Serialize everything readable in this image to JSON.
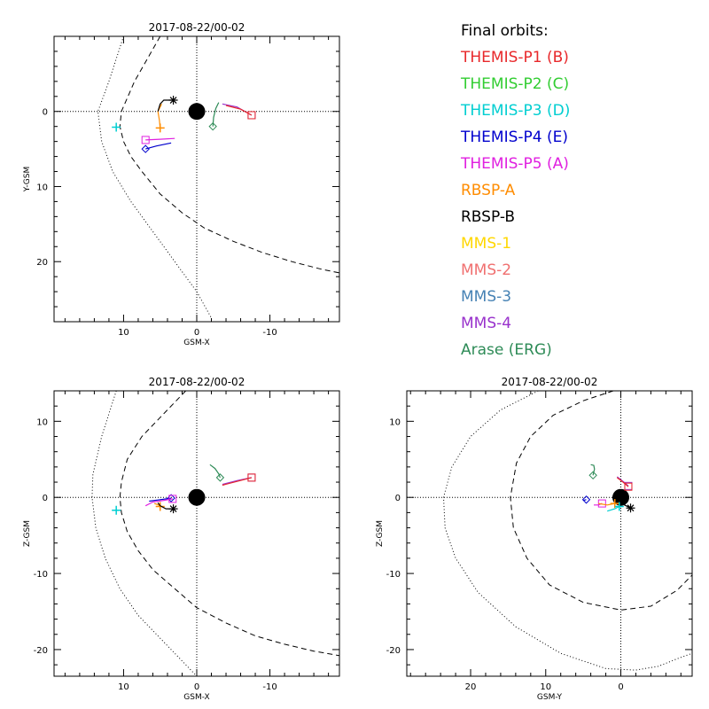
{
  "chart_data": [
    {
      "type": "scatter",
      "id": "xy",
      "title": "2017-08-22/00-02",
      "xlabel": "GSM-X",
      "ylabel": "Y-GSM",
      "xlim": [
        19.5,
        -19.5
      ],
      "ylim": [
        -10,
        28
      ],
      "xticks": [
        {
          "v": 10,
          "label": "10"
        },
        {
          "v": 0,
          "label": "0"
        },
        {
          "v": -10,
          "label": "-10"
        }
      ],
      "yticks": [
        {
          "v": 0,
          "label": "0"
        },
        {
          "v": 10,
          "label": "10"
        },
        {
          "v": 20,
          "label": "20"
        }
      ],
      "boundaries": [
        {
          "name": "dotted-boundary",
          "style": "dotted",
          "points": [
            [
              10,
              -10
            ],
            [
              12,
              -4
            ],
            [
              13.5,
              0
            ],
            [
              13,
              4
            ],
            [
              11.5,
              8
            ],
            [
              9,
              12
            ],
            [
              6,
              16
            ],
            [
              3,
              20
            ],
            [
              0,
              24
            ],
            [
              -2,
              27.5
            ]
          ]
        },
        {
          "name": "dashed-boundary",
          "style": "dashed",
          "points": [
            [
              5,
              -10
            ],
            [
              8.5,
              -4
            ],
            [
              10.3,
              0
            ],
            [
              10.5,
              2
            ],
            [
              10,
              4
            ],
            [
              9,
              6
            ],
            [
              7.5,
              8
            ],
            [
              5,
              11
            ],
            [
              2,
              13.5
            ],
            [
              -1,
              15.5
            ],
            [
              -5,
              17.3
            ],
            [
              -9,
              18.8
            ],
            [
              -13,
              20
            ],
            [
              -17,
              21
            ],
            [
              -19.5,
              21.5
            ]
          ]
        }
      ],
      "traces": [
        {
          "name": "arase-trace",
          "color": "#2E8B57",
          "marker": "diamond",
          "points": [
            [
              -3,
              -1.2
            ],
            [
              -2.6,
              -0.4
            ],
            [
              -2.3,
              0.8
            ],
            [
              -2.2,
              2
            ]
          ]
        },
        {
          "name": "mms-4-trace",
          "color": "#9932CC",
          "marker": "square",
          "points": [
            [
              -3.5,
              -1
            ],
            [
              -5.5,
              -0.6
            ],
            [
              -7.5,
              0.5
            ]
          ]
        },
        {
          "name": "themis-p1-trace",
          "color": "#E8282B",
          "marker": "square",
          "points": [
            [
              -4,
              -0.8
            ],
            [
              -6,
              -0.3
            ],
            [
              -7.5,
              0.5
            ]
          ]
        },
        {
          "name": "rbsp-a-trace",
          "color": "#FF8C00",
          "marker": "plus",
          "points": [
            [
              4.8,
              -1
            ],
            [
              5.3,
              0
            ],
            [
              5.1,
              1.2
            ],
            [
              5,
              2.2
            ]
          ]
        },
        {
          "name": "themis-p5-trace",
          "color": "#E020E0",
          "marker": "square",
          "points": [
            [
              3,
              3.6
            ],
            [
              5,
              3.7
            ],
            [
              7,
              3.8
            ]
          ]
        },
        {
          "name": "themis-p4-trace",
          "color": "#0000CD",
          "marker": "diamond",
          "points": [
            [
              3.5,
              4.2
            ],
            [
              5.5,
              4.6
            ],
            [
              7,
              5
            ]
          ]
        },
        {
          "name": "themis-p3-trace",
          "color": "#00CED1",
          "marker": "plus",
          "points": [
            [
              11,
              2
            ],
            [
              11,
              2.1
            ]
          ]
        },
        {
          "name": "rbsp-b-trace",
          "color": "#000000",
          "marker": "asterisk",
          "points": [
            [
              5.3,
              0
            ],
            [
              5,
              -1
            ],
            [
              4.5,
              -1.5
            ],
            [
              3.2,
              -1.5
            ]
          ]
        }
      ]
    },
    {
      "type": "scatter",
      "id": "xz",
      "title": "2017-08-22/00-02",
      "xlabel": "GSM-X",
      "ylabel": "Z-GSM",
      "xlim": [
        19.5,
        -19.5
      ],
      "ylim": [
        14,
        -23.5
      ],
      "xticks": [
        {
          "v": 10,
          "label": "10"
        },
        {
          "v": 0,
          "label": "0"
        },
        {
          "v": -10,
          "label": "-10"
        }
      ],
      "yticks": [
        {
          "v": 10,
          "label": "10"
        },
        {
          "v": 0,
          "label": "0"
        },
        {
          "v": -10,
          "label": "-10"
        },
        {
          "v": -20,
          "label": "-20"
        }
      ],
      "boundaries": [
        {
          "name": "dotted-boundary",
          "style": "dotted",
          "points": [
            [
              11,
              14
            ],
            [
              13,
              8
            ],
            [
              14.2,
              3
            ],
            [
              14.3,
              0
            ],
            [
              13.8,
              -4
            ],
            [
              12.5,
              -8
            ],
            [
              10.5,
              -12
            ],
            [
              8,
              -15.5
            ],
            [
              5,
              -18.5
            ],
            [
              2,
              -21.5
            ],
            [
              0,
              -23.5
            ]
          ]
        },
        {
          "name": "dashed-boundary",
          "style": "dashed",
          "points": [
            [
              1.5,
              14
            ],
            [
              4.5,
              11
            ],
            [
              7.5,
              8
            ],
            [
              9.5,
              5
            ],
            [
              10.3,
              2
            ],
            [
              10.5,
              0
            ],
            [
              10.3,
              -2
            ],
            [
              9.5,
              -4.5
            ],
            [
              8,
              -7
            ],
            [
              6,
              -9.5
            ],
            [
              3,
              -12
            ],
            [
              0,
              -14.5
            ],
            [
              -4,
              -16.5
            ],
            [
              -8,
              -18.2
            ],
            [
              -12,
              -19.3
            ],
            [
              -16,
              -20.2
            ],
            [
              -19.5,
              -20.8
            ]
          ]
        }
      ],
      "traces": [
        {
          "name": "arase-trace",
          "color": "#2E8B57",
          "marker": "diamond",
          "points": [
            [
              -1.8,
              4.3
            ],
            [
              -2.5,
              3.8
            ],
            [
              -3,
              3.1
            ],
            [
              -3.2,
              2.6
            ]
          ]
        },
        {
          "name": "mms-4-trace",
          "color": "#9932CC",
          "marker": "square",
          "points": [
            [
              -3.5,
              1.7
            ],
            [
              -5.5,
              2.2
            ],
            [
              -7.5,
              2.6
            ]
          ]
        },
        {
          "name": "themis-p1-trace",
          "color": "#E8282B",
          "marker": "square",
          "points": [
            [
              -3.5,
              1.6
            ],
            [
              -5.5,
              2.1
            ],
            [
              -7.5,
              2.6
            ]
          ]
        },
        {
          "name": "themis-p4-trace",
          "color": "#0000CD",
          "marker": "diamond",
          "points": [
            [
              6.5,
              -0.5
            ],
            [
              5,
              -0.3
            ],
            [
              3.5,
              -0.1
            ]
          ]
        },
        {
          "name": "themis-p5-trace",
          "color": "#E020E0",
          "marker": "square",
          "points": [
            [
              7,
              -1.1
            ],
            [
              6,
              -0.6
            ],
            [
              4.5,
              -0.4
            ],
            [
              3.3,
              -0.2
            ]
          ]
        },
        {
          "name": "rbsp-a-trace",
          "color": "#FF8C00",
          "marker": "plus",
          "points": [
            [
              5.8,
              -0.8
            ],
            [
              5.2,
              -1
            ],
            [
              5,
              -1.2
            ]
          ]
        },
        {
          "name": "themis-p3-trace",
          "color": "#00CED1",
          "marker": "plus",
          "points": [
            [
              11,
              -1.8
            ],
            [
              11,
              -1.7
            ]
          ]
        },
        {
          "name": "rbsp-b-trace",
          "color": "#000000",
          "marker": "asterisk",
          "points": [
            [
              5.3,
              -0.7
            ],
            [
              5,
              -1.1
            ],
            [
              4.2,
              -1.5
            ],
            [
              3.2,
              -1.5
            ]
          ]
        }
      ]
    },
    {
      "type": "scatter",
      "id": "yz",
      "title": "2017-08-22/00-02",
      "xlabel": "GSM-Y",
      "ylabel": "Z-GSM",
      "xlim": [
        28.5,
        -9.5
      ],
      "ylim": [
        14,
        -23.5
      ],
      "xticks": [
        {
          "v": 20,
          "label": "20"
        },
        {
          "v": 10,
          "label": "10"
        },
        {
          "v": 0,
          "label": "0"
        }
      ],
      "yticks": [
        {
          "v": 10,
          "label": "10"
        },
        {
          "v": 0,
          "label": "0"
        },
        {
          "v": -10,
          "label": "-10"
        },
        {
          "v": -20,
          "label": "-20"
        }
      ],
      "boundaries": [
        {
          "name": "dotted-boundary",
          "style": "dotted",
          "points": [
            [
              11,
              14
            ],
            [
              16,
              11.5
            ],
            [
              20,
              8
            ],
            [
              22.5,
              4
            ],
            [
              23.6,
              0
            ],
            [
              23.4,
              -4
            ],
            [
              22,
              -8
            ],
            [
              19,
              -12.5
            ],
            [
              14,
              -17
            ],
            [
              8,
              -20.5
            ],
            [
              2,
              -22.5
            ],
            [
              -2,
              -22.7
            ],
            [
              -5,
              -22.2
            ],
            [
              -7.5,
              -21.2
            ],
            [
              -9.5,
              -20.5
            ]
          ]
        },
        {
          "name": "dashed-boundary",
          "style": "dashed",
          "points": [
            [
              1,
              14
            ],
            [
              5,
              12.7
            ],
            [
              9,
              10.8
            ],
            [
              12,
              8
            ],
            [
              13.9,
              4.5
            ],
            [
              14.7,
              0
            ],
            [
              14.3,
              -4
            ],
            [
              12.5,
              -8
            ],
            [
              9.5,
              -11.5
            ],
            [
              5,
              -13.8
            ],
            [
              0,
              -14.8
            ],
            [
              -4,
              -14.3
            ],
            [
              -7.5,
              -12.2
            ],
            [
              -9.5,
              -10.2
            ]
          ]
        }
      ],
      "traces": [
        {
          "name": "arase-trace",
          "color": "#2E8B57",
          "marker": "diamond",
          "points": [
            [
              4,
              4.3
            ],
            [
              3.6,
              4.2
            ],
            [
              3.5,
              3.7
            ],
            [
              3.7,
              2.9
            ]
          ]
        },
        {
          "name": "mms-4-trace",
          "color": "#9932CC",
          "marker": "square",
          "points": [
            [
              0.5,
              2.7
            ],
            [
              -0.3,
              2.1
            ],
            [
              -1,
              1.5
            ]
          ]
        },
        {
          "name": "themis-p1-trace",
          "color": "#E8282B",
          "marker": "square",
          "points": [
            [
              0.5,
              2.6
            ],
            [
              -0.3,
              2
            ],
            [
              -1,
              1.4
            ]
          ]
        },
        {
          "name": "themis-p4-trace",
          "color": "#0000CD",
          "marker": "diamond",
          "points": [
            [
              5,
              -0.4
            ],
            [
              4.6,
              -0.3
            ]
          ]
        },
        {
          "name": "themis-p5-trace",
          "color": "#E020E0",
          "marker": "square",
          "points": [
            [
              3.6,
              -1
            ],
            [
              3,
              -1
            ],
            [
              2.5,
              -0.8
            ]
          ]
        },
        {
          "name": "rbsp-a-trace",
          "color": "#FF8C00",
          "marker": "plus",
          "points": [
            [
              3,
              -0.8
            ],
            [
              1.8,
              -1
            ],
            [
              0.8,
              -0.8
            ]
          ]
        },
        {
          "name": "themis-p3-trace",
          "color": "#00CED1",
          "marker": "plus",
          "points": [
            [
              1.8,
              -1.8
            ],
            [
              0.8,
              -1.5
            ],
            [
              0.2,
              -1.2
            ]
          ]
        },
        {
          "name": "rbsp-b-trace",
          "color": "#000000",
          "marker": "asterisk",
          "points": [
            [
              0.5,
              -0.3
            ],
            [
              -0.5,
              -1
            ],
            [
              -1.3,
              -1.4
            ]
          ]
        }
      ]
    }
  ],
  "legend": {
    "title": "Final orbits:",
    "items": [
      {
        "label": "THEMIS-P1 (B)",
        "color": "#E8282B"
      },
      {
        "label": "THEMIS-P2 (C)",
        "color": "#32CD32"
      },
      {
        "label": "THEMIS-P3 (D)",
        "color": "#00CED1"
      },
      {
        "label": "THEMIS-P4 (E)",
        "color": "#0000CD"
      },
      {
        "label": "THEMIS-P5 (A)",
        "color": "#E020E0"
      },
      {
        "label": "RBSP-A",
        "color": "#FF8C00"
      },
      {
        "label": "RBSP-B",
        "color": "#000000"
      },
      {
        "label": "MMS-1",
        "color": "#FFD700"
      },
      {
        "label": "MMS-2",
        "color": "#F07070"
      },
      {
        "label": "MMS-3",
        "color": "#4682B4"
      },
      {
        "label": "MMS-4",
        "color": "#9932CC"
      },
      {
        "label": "Arase (ERG)",
        "color": "#2E8B57"
      }
    ]
  }
}
